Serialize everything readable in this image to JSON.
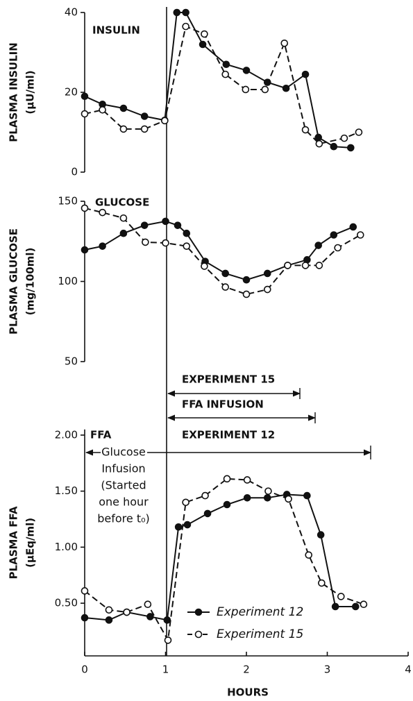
{
  "chart_data": [
    {
      "type": "line",
      "label": "INSULIN",
      "ylabel": [
        "PLASMA INSULIN",
        "(μU/ml)"
      ],
      "xlim": [
        0,
        4
      ],
      "ylim": [
        0,
        40
      ],
      "yticks": [
        0,
        20,
        40
      ],
      "series": [
        {
          "color": "#111",
          "marker": "filled",
          "dashed": false,
          "x": [
            0,
            0.22,
            0.48,
            0.74,
            0.99,
            1.14,
            1.25,
            1.46,
            1.75,
            2.0,
            2.26,
            2.49,
            2.73,
            2.89,
            3.08,
            3.29
          ],
          "values": [
            19,
            17,
            16,
            14,
            13,
            40,
            40,
            32,
            27,
            25.5,
            22.5,
            21,
            24.5,
            8.7,
            6.4,
            6.1
          ]
        },
        {
          "color": "#111",
          "marker": "open",
          "dashed": true,
          "x": [
            0,
            0.22,
            0.48,
            0.74,
            0.99,
            1.25,
            1.48,
            1.74,
            1.99,
            2.23,
            2.47,
            2.73,
            2.9,
            3.21,
            3.39
          ],
          "values": [
            14.6,
            15.6,
            10.8,
            10.8,
            12.9,
            36.5,
            34.6,
            24.5,
            20.7,
            20.7,
            32.3,
            10.6,
            7.1,
            8.5,
            10
          ]
        }
      ]
    },
    {
      "type": "line",
      "label": "GLUCOSE",
      "ylabel": [
        "PLASMA GLUCOSE",
        "(mg/100ml)"
      ],
      "xlim": [
        0,
        4
      ],
      "ylim": [
        50,
        150
      ],
      "yticks": [
        50,
        100,
        150
      ],
      "series": [
        {
          "color": "#111",
          "marker": "filled",
          "dashed": false,
          "x": [
            0,
            0.22,
            0.48,
            0.74,
            1.0,
            1.15,
            1.26,
            1.49,
            1.74,
            2.0,
            2.26,
            2.51,
            2.75,
            2.89,
            3.08,
            3.32
          ],
          "values": [
            119.7,
            122,
            130,
            135,
            137.5,
            135,
            130,
            112.5,
            105,
            101,
            105,
            110,
            113.5,
            122.5,
            129,
            134
          ]
        },
        {
          "color": "#111",
          "marker": "open",
          "dashed": true,
          "x": [
            0,
            0.22,
            0.48,
            0.75,
            1.0,
            1.26,
            1.48,
            1.74,
            2.0,
            2.26,
            2.51,
            2.73,
            2.9,
            3.13,
            3.41
          ],
          "values": [
            145.7,
            143,
            139.5,
            124.5,
            124,
            122,
            109.5,
            96.5,
            92,
            95,
            110,
            110,
            110,
            121,
            129
          ]
        }
      ]
    },
    {
      "type": "line",
      "ylabel": [
        "PLASMA FFA",
        "(μEq/ml)"
      ],
      "xlabel": "HOURS",
      "xlim": [
        0,
        4
      ],
      "xticks": [
        0,
        1,
        2,
        3,
        4
      ],
      "ylim": [
        0.03,
        2.05
      ],
      "yticks": [
        {
          "value": 0.5,
          "label": "0.50"
        },
        {
          "value": 1,
          "label": "1.00"
        },
        {
          "value": 1.5,
          "label": "1.50"
        },
        {
          "value": 2,
          "label": "2.00"
        }
      ],
      "annotations": [
        "EXPERIMENT 15",
        "FFA INFUSION",
        "EXPERIMENT 12",
        "FFA",
        "Glucose",
        "Infusion",
        "(Started",
        "one hour",
        "before t₀)"
      ],
      "legend": "lower-center",
      "series": [
        {
          "name": "Experiment 12",
          "color": "#111",
          "marker": "filled",
          "dashed": false,
          "x": [
            0,
            0.3,
            0.52,
            0.81,
            1.02,
            1.16,
            1.27,
            1.52,
            1.76,
            2.01,
            2.26,
            2.5,
            2.75,
            2.92,
            3.1,
            3.35
          ],
          "values": [
            0.37,
            0.35,
            0.42,
            0.38,
            0.35,
            1.18,
            1.2,
            1.3,
            1.38,
            1.44,
            1.44,
            1.47,
            1.46,
            1.11,
            0.47,
            0.47
          ]
        },
        {
          "name": "Experiment 15",
          "color": "#111",
          "marker": "open",
          "dashed": true,
          "x": [
            0,
            0.3,
            0.52,
            0.78,
            1.03,
            1.25,
            1.49,
            1.76,
            2.01,
            2.27,
            2.52,
            2.77,
            2.93,
            3.17,
            3.45
          ],
          "values": [
            0.61,
            0.44,
            0.42,
            0.49,
            0.17,
            1.4,
            1.46,
            1.61,
            1.6,
            1.5,
            1.43,
            0.93,
            0.68,
            0.56,
            0.49
          ]
        }
      ]
    }
  ]
}
